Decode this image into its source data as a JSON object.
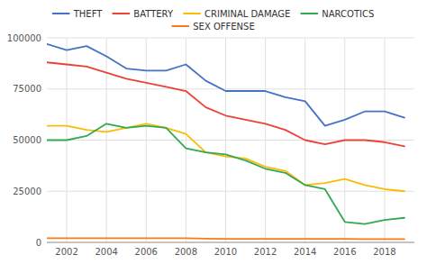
{
  "chart_data": {
    "type": "line",
    "x": [
      2001,
      2002,
      2003,
      2004,
      2005,
      2006,
      2007,
      2008,
      2009,
      2010,
      2011,
      2012,
      2013,
      2014,
      2015,
      2016,
      2017,
      2018,
      2019
    ],
    "series": [
      {
        "name": "THEFT",
        "color": "#4472C4",
        "values": [
          97000,
          94000,
          96000,
          91000,
          85000,
          84000,
          84000,
          87000,
          79000,
          74000,
          74000,
          74000,
          71000,
          69000,
          57000,
          60000,
          64000,
          64000,
          61000
        ]
      },
      {
        "name": "BATTERY",
        "color": "#EA4335",
        "values": [
          88000,
          87000,
          86000,
          83000,
          80000,
          78000,
          76000,
          74000,
          66000,
          62000,
          60000,
          58000,
          55000,
          50000,
          48000,
          50000,
          50000,
          49000,
          47000
        ]
      },
      {
        "name": "CRIMINAL DAMAGE",
        "color": "#FBBC04",
        "values": [
          57000,
          57000,
          55000,
          54000,
          56000,
          58000,
          56000,
          53000,
          44000,
          42000,
          41000,
          37000,
          35000,
          28000,
          29000,
          31000,
          28000,
          26000,
          25000
        ]
      },
      {
        "name": "NARCOTICS",
        "color": "#34A853",
        "values": [
          50000,
          50000,
          52000,
          58000,
          56000,
          57000,
          56000,
          46000,
          44000,
          43000,
          40000,
          36000,
          34000,
          28000,
          26000,
          10000,
          9000,
          11000,
          12000
        ]
      },
      {
        "name": "SEX OFFENSE",
        "color": "#FA7B17",
        "values": [
          2000,
          2000,
          2000,
          2000,
          2000,
          2000,
          2000,
          2000,
          1800,
          1700,
          1700,
          1700,
          1700,
          1700,
          1700,
          1700,
          1600,
          1600,
          1600
        ]
      }
    ],
    "xlim": [
      2001.0,
      2019.5
    ],
    "ylim": [
      0,
      100000
    ],
    "xticks": [
      2002,
      2004,
      2006,
      2008,
      2010,
      2012,
      2014,
      2016,
      2018
    ],
    "yticks": [
      0,
      25000,
      50000,
      75000,
      100000
    ],
    "grid": true,
    "legend": "top"
  }
}
